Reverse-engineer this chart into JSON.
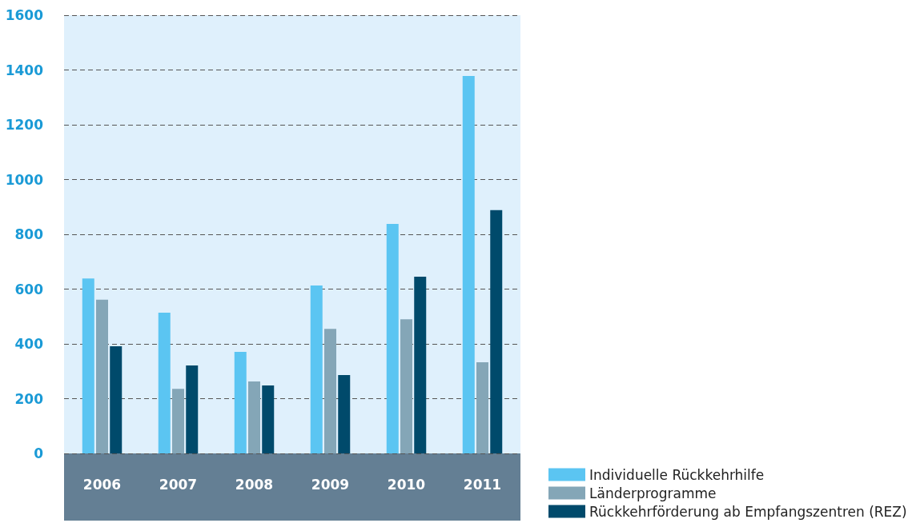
{
  "chart_data": {
    "type": "bar",
    "categories": [
      "2006",
      "2007",
      "2008",
      "2009",
      "2010",
      "2011"
    ],
    "series": [
      {
        "name": "Individuelle Rückkehrhilfe",
        "color": "#5bc5f2",
        "values": [
          639,
          514,
          371,
          613,
          838,
          1378
        ]
      },
      {
        "name": "Länderprogramme",
        "color": "#84a6b7",
        "values": [
          561,
          236,
          263,
          455,
          490,
          333
        ]
      },
      {
        "name": "Rückkehrförderung ab Empfangszentren (REZ)",
        "color": "#004a6b",
        "values": [
          391,
          321,
          248,
          286,
          645,
          888
        ]
      }
    ],
    "ylim": [
      0,
      1600
    ],
    "yticks": [
      0,
      200,
      400,
      600,
      800,
      1000,
      1200,
      1400,
      1600
    ],
    "grid": "y",
    "legend": "bottom right"
  }
}
